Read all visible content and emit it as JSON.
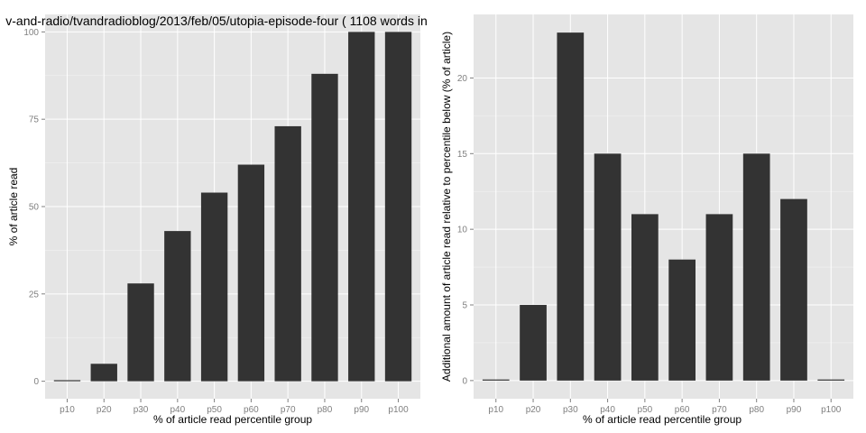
{
  "chart_data": [
    {
      "type": "bar",
      "title": "v-and-radio/tvandradioblog/2013/feb/05/utopia-episode-four ( 1108 words in",
      "xlabel": "% of article read percentile group",
      "ylabel": "% of article read",
      "categories": [
        "p10",
        "p20",
        "p30",
        "p40",
        "p50",
        "p60",
        "p70",
        "p80",
        "p90",
        "p100"
      ],
      "values": [
        0,
        5,
        28,
        43,
        54,
        62,
        73,
        88,
        100,
        100
      ],
      "ylim": [
        -5,
        105
      ],
      "yticks": [
        "0",
        "25",
        "50",
        "75",
        "100"
      ],
      "grid": true,
      "background": "#e5e5e5",
      "bar_color": "#333333"
    },
    {
      "type": "bar",
      "title": "",
      "xlabel": "% of article read percentile group",
      "ylabel": "Additional amount of article read relative to percentile below (% of article)",
      "categories": [
        "p10",
        "p20",
        "p30",
        "p40",
        "p50",
        "p60",
        "p70",
        "p80",
        "p90",
        "p100"
      ],
      "values": [
        0,
        5,
        23,
        15,
        11,
        8,
        11,
        15,
        12,
        0
      ],
      "ylim": [
        -1.2,
        24.2
      ],
      "yticks": [
        "0",
        "5",
        "10",
        "15",
        "20"
      ],
      "grid": true,
      "background": "#e5e5e5",
      "bar_color": "#333333"
    }
  ]
}
